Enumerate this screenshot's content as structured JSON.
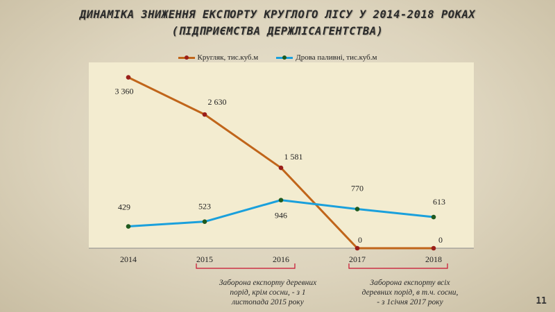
{
  "slide": {
    "title_line1": "ДИНАМІКА ЗНИЖЕННЯ ЕКСПОРТУ КРУГЛОГО ЛІСУ У 2014-2018 РОКАХ",
    "title_line2": "(ПІДПРИЄМСТВА ДЕРЖЛІСАГЕНТСТВА)",
    "page_number": "11"
  },
  "chart_data": {
    "type": "line",
    "categories": [
      "2014",
      "2015",
      "2016",
      "2017",
      "2018"
    ],
    "series": [
      {
        "name": "Кругляк, тис.куб.м",
        "values": [
          3360,
          2630,
          1581,
          0,
          0
        ],
        "labels": [
          "3 360",
          "2 630",
          "1 581",
          "0",
          "0"
        ],
        "color": "#c0651a",
        "marker_color": "#9a1f1a"
      },
      {
        "name": "Дрова паливні, тис.куб.м",
        "values": [
          429,
          523,
          946,
          770,
          613
        ],
        "labels": [
          "429",
          "523",
          "946",
          "770",
          "613"
        ],
        "color": "#1aa0dc",
        "marker_color": "#1e5a1e"
      }
    ],
    "ylim": [
      0,
      3600
    ],
    "grid": false,
    "legend_position": "top"
  },
  "notes": [
    {
      "text": "Заборона експорту деревних\nпорід, крім сосни, - з 1\nлистопада 2015 року",
      "bracket_from": "2015",
      "bracket_to": "2016"
    },
    {
      "text": "Заборона експорту всіх\nдеревних порід, в т.ч. сосни,\n- з 1січня 2017 року",
      "bracket_from": "2017",
      "bracket_to": "2018"
    }
  ],
  "colors": {
    "plot_bg": "#f3ecd0",
    "bracket": "#c8102e",
    "axis": "#8a8a8a"
  }
}
